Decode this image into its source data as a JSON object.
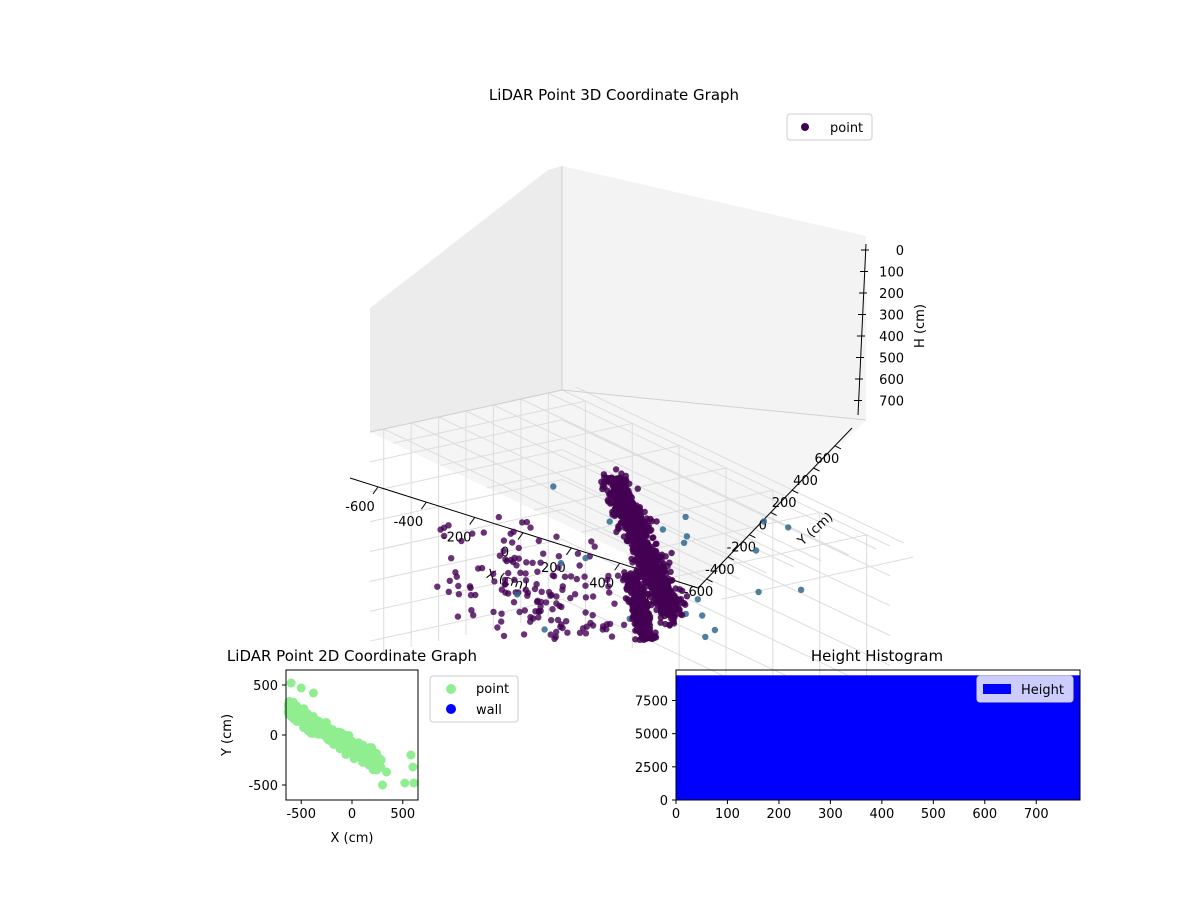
{
  "chart_data": [
    {
      "type": "scatter",
      "projection": "3d",
      "title": "LiDAR Point 3D Coordinate Graph",
      "xlabel": "X (cm)",
      "ylabel": "Y (cm)",
      "zlabel": "H (cm)",
      "xlim": [
        -700,
        700
      ],
      "ylim": [
        -700,
        700
      ],
      "zlim": [
        750,
        0
      ],
      "xticks": [
        "-600",
        "-400",
        "-200",
        "0",
        "200",
        "400",
        "600"
      ],
      "yticks": [
        "-600",
        "-400",
        "-200",
        "0",
        "200",
        "400",
        "600"
      ],
      "zticks": [
        "0",
        "100",
        "200",
        "300",
        "400",
        "500",
        "600",
        "700"
      ],
      "grid": true,
      "legend": {
        "position": "top-right",
        "entries": [
          "point"
        ]
      },
      "colormap": [
        "#440154",
        "#3b528b",
        "#31688e",
        "#21918c"
      ],
      "series": [
        {
          "name": "point",
          "color": "#440154"
        }
      ]
    },
    {
      "type": "scatter",
      "title": "LiDAR Point 2D Coordinate Graph",
      "xlabel": "X (cm)",
      "ylabel": "Y (cm)",
      "xlim": [
        -650,
        650
      ],
      "ylim": [
        -650,
        650
      ],
      "xticks": [
        "-500",
        "0",
        "500"
      ],
      "yticks": [
        "-500",
        "0",
        "500"
      ],
      "legend": {
        "position": "outside-right",
        "entries": [
          "point",
          "wall"
        ]
      },
      "series": [
        {
          "name": "point",
          "color": "#90ee90"
        },
        {
          "name": "wall",
          "color": "#0000ff"
        }
      ]
    },
    {
      "type": "bar",
      "title": "Height Histogram",
      "xlim": [
        0,
        785
      ],
      "ylim": [
        0,
        9800
      ],
      "xticks": [
        "0",
        "100",
        "200",
        "300",
        "400",
        "500",
        "600",
        "700"
      ],
      "yticks": [
        "0",
        "2500",
        "5000",
        "7500"
      ],
      "legend": {
        "position": "top-right",
        "entries": [
          "Height"
        ]
      },
      "series": [
        {
          "name": "Height",
          "color": "#0000ff",
          "value": 9400,
          "x_range": [
            0,
            785
          ]
        }
      ]
    }
  ]
}
